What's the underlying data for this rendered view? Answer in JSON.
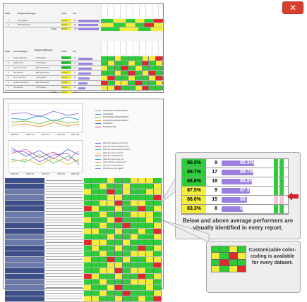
{
  "top_table": {
    "headers": [
      "Rank",
      "Regional Manager",
      "Total",
      "Cnt"
    ],
    "rows": [
      {
        "rank": "1",
        "name": "Jill Pagano",
        "total": "87.4%",
        "cnt": "64"
      },
      {
        "rank": "2",
        "name": "Bill Handcock",
        "total": "84.2%",
        "cnt": "53"
      }
    ],
    "total_label": "Total",
    "total_value": "86.0%",
    "total_cnt": "117"
  },
  "area_table": {
    "headers": [
      "Rank",
      "Area Manager",
      "Regional Manager",
      "Total",
      "Cnt"
    ],
    "rows": [
      {
        "rank": "1",
        "area": "Frank Ramirez",
        "regional": "Jill Pagano",
        "total": "90.3%",
        "cnt": "9"
      },
      {
        "rank": "2",
        "area": "Julie Frost",
        "regional": "Jill Pagano",
        "total": "89.7%",
        "cnt": "17"
      },
      {
        "rank": "3",
        "area": "Karen Gomez",
        "regional": "Bill Handcock",
        "total": "88.8%",
        "cnt": "18"
      },
      {
        "rank": "4",
        "area": "Jon Brown",
        "regional": "Bill Handcock",
        "total": "87.5%",
        "cnt": "9"
      },
      {
        "rank": "5",
        "area": "Ann Garrison",
        "regional": "Jill Pagano",
        "total": "86.0%",
        "cnt": "15"
      },
      {
        "rank": "6",
        "area": "Nelson Sanchez",
        "regional": "Bill Handcock",
        "total": "83.3%",
        "cnt": "8"
      },
      {
        "rank": "7",
        "area": "Jim Brown",
        "regional": "Jill Pagano",
        "total": "80.0%",
        "cnt": "10"
      }
    ],
    "total_label": "Total",
    "total_value": "86.0%",
    "total_cnt": "117"
  },
  "chart_legend_1": [
    "INTERIOR ASSESSMENT",
    "INTERIOR",
    "EXTERIOR ASSESSMENT",
    "EXTERIOR ASSESSMENT",
    "OVERALL",
    "SUBJECTIVE"
  ],
  "chart_legend_2": [
    "Was the parking lot clean?",
    "Was the landscaping clean?",
    "Was the store exterior clean?",
    "Was the entry clean?",
    "Was all merchandise?",
    "Was the store free of?",
    "Were all the employees?",
    "Was the store clean?",
    "Would you visit again?"
  ],
  "chart_x_labels_1": [
    "2006-10",
    "2007-02",
    "2007-04",
    "2007-06",
    "2007-08"
  ],
  "chart_x_labels_2": [
    "2006-10",
    "2007-02",
    "2007-04",
    "2007-06",
    "2007-08"
  ],
  "callout1": {
    "rows": [
      {
        "pct": "90.3%",
        "cnt": "9",
        "bar": "90.3%"
      },
      {
        "pct": "89.7%",
        "cnt": "17",
        "bar": "89.7%"
      },
      {
        "pct": "88.8%",
        "cnt": "18",
        "bar": "88.8%"
      },
      {
        "pct": "87.5%",
        "cnt": "9",
        "bar": "87.5%"
      },
      {
        "pct": "86.0%",
        "cnt": "15",
        "bar": "86.0%"
      },
      {
        "pct": "83.3%",
        "cnt": "8",
        "bar": "83.3%"
      }
    ],
    "caption": "Below and above average performers are visually identified in every report."
  },
  "callout2": {
    "caption": "Customizable color-coding is available for every dataset."
  },
  "colors": {
    "green": "#2ecc3a",
    "yellow": "#f3ee3b",
    "red": "#e0282d",
    "bar": "#9b7fe0",
    "arrow": "#d7262b"
  },
  "icons": {
    "close": "close-icon",
    "arrow": "arrow-left-icon"
  },
  "close_glyph": "✕"
}
